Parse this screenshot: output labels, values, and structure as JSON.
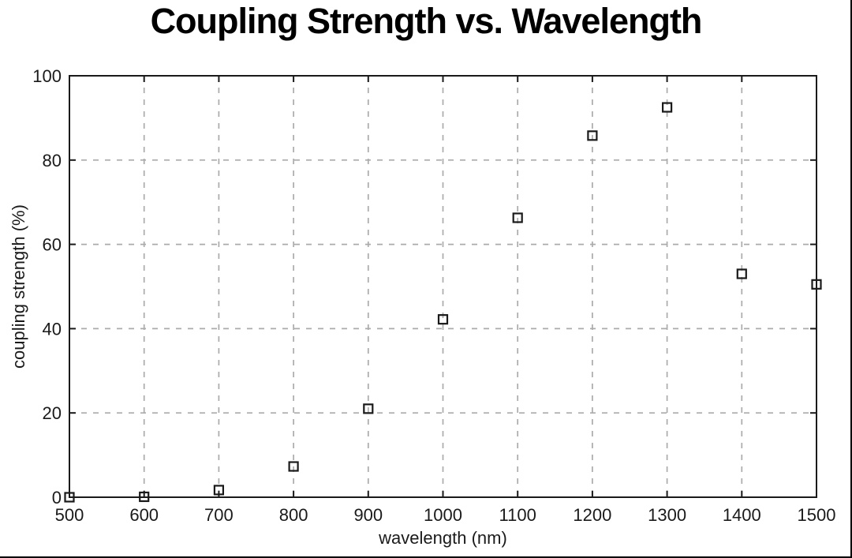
{
  "chart_data": {
    "type": "scatter",
    "title": "Coupling Strength vs. Wavelength",
    "xlabel": "wavelength (nm)",
    "ylabel": "coupling strength (%)",
    "x": [
      500,
      600,
      700,
      800,
      900,
      1000,
      1100,
      1200,
      1300,
      1400,
      1500
    ],
    "y": [
      0,
      0.1,
      1.7,
      7.3,
      21,
      42.2,
      66.3,
      85.8,
      92.5,
      53,
      50.5
    ],
    "xlim": [
      500,
      1500
    ],
    "ylim": [
      0,
      100
    ],
    "xticks": [
      500,
      600,
      700,
      800,
      900,
      1000,
      1100,
      1200,
      1300,
      1400,
      1500
    ],
    "yticks": [
      0,
      20,
      40,
      60,
      80,
      100
    ],
    "grid": true,
    "grid_style": "dashed",
    "legend": false,
    "marker": "open-square",
    "colors": {
      "marker": "#1a1a1a",
      "axis": "#1a1a1a",
      "grid": "#ababab",
      "text": "#1a1a1a",
      "background": "#ffffff"
    }
  }
}
